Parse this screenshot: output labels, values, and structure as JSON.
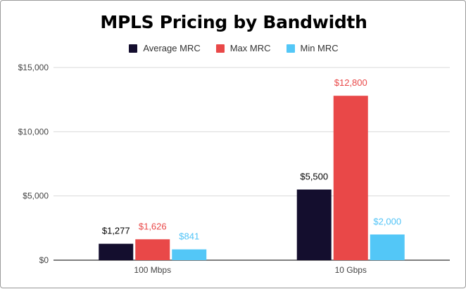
{
  "chart_data": {
    "type": "bar",
    "title": "MPLS Pricing by Bandwidth",
    "xlabel": "",
    "ylabel": "",
    "categories": [
      "100 Mbps",
      "10 Gbps"
    ],
    "series": [
      {
        "name": "Average MRC",
        "color": "#140e2e",
        "label_color": "#000000",
        "values": [
          1277,
          5500
        ],
        "labels": [
          "$1,277",
          "$5,500"
        ]
      },
      {
        "name": "Max MRC",
        "color": "#e94848",
        "label_color": "#e94848",
        "values": [
          1626,
          12800
        ],
        "labels": [
          "$1,626",
          "$12,800"
        ]
      },
      {
        "name": "Min MRC",
        "color": "#53c7f7",
        "label_color": "#4fc3f7",
        "values": [
          841,
          2000
        ],
        "labels": [
          "$841",
          "$2,000"
        ]
      }
    ],
    "ylim": [
      0,
      15000
    ],
    "yticks": [
      0,
      5000,
      10000,
      15000
    ],
    "ytick_labels": [
      "$0",
      "$5,000",
      "$10,000",
      "$15,000"
    ],
    "grid": true,
    "legend": "top-center"
  }
}
